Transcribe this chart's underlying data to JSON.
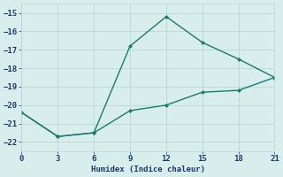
{
  "line1_x": [
    0,
    3,
    6,
    9,
    12,
    15,
    18,
    21
  ],
  "line1_y": [
    -20.4,
    -21.7,
    -21.5,
    -16.8,
    -15.2,
    -16.6,
    -17.5,
    -18.5
  ],
  "line2_x": [
    0,
    3,
    6,
    9,
    12,
    15,
    18,
    21
  ],
  "line2_y": [
    -20.4,
    -21.7,
    -21.5,
    -20.3,
    -20.0,
    -19.3,
    -19.2,
    -18.5
  ],
  "line_color": "#1a7a6e",
  "bg_color": "#d8eeec",
  "grid_color": "#b8d8d4",
  "xlabel": "Humidex (Indice chaleur)",
  "xlim": [
    0,
    21
  ],
  "ylim": [
    -22.5,
    -14.5
  ],
  "xticks": [
    0,
    3,
    6,
    9,
    12,
    15,
    18,
    21
  ],
  "yticks": [
    -22,
    -21,
    -20,
    -19,
    -18,
    -17,
    -16,
    -15
  ],
  "font_color": "#1a3a6e"
}
